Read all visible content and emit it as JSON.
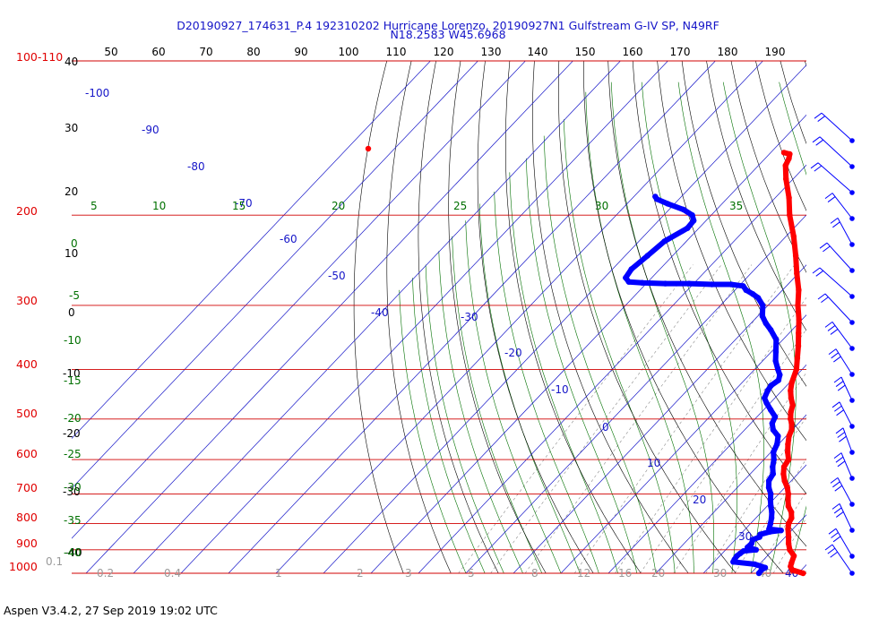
{
  "header": {
    "title_line1": "D20190927_174631_P.4 192310202 Hurricane Lorenzo, 20190927N1 Gulfstream G-IV SP, N49RF",
    "title_line2": "N18.2583 W45.6968"
  },
  "footer": {
    "software": "Aspen V3.4.2, 27 Sep 2019  19:02 UTC"
  },
  "colors": {
    "temperature": "#ff0000",
    "dewpoint": "#0000ff",
    "isobar": "#d00000",
    "isotherm": "#1515c8",
    "dry_adiabat": "#000000",
    "moist_adiabat": "#007000",
    "mixing_ratio": "#8a8a8a"
  },
  "chart_data": {
    "type": "skew-t",
    "pressure_axis": {
      "unit": "hPa",
      "ticks": [
        "100-110",
        "200",
        "300",
        "400",
        "500",
        "600",
        "700",
        "800",
        "900",
        "1000"
      ]
    },
    "top_axis_ticks": [
      "50",
      "60",
      "70",
      "80",
      "90",
      "100",
      "110",
      "120",
      "130",
      "140",
      "150",
      "160",
      "170",
      "180",
      "190"
    ],
    "height_ticks": [
      "40",
      "30",
      "20",
      "10",
      "0",
      "-10",
      "-20",
      "-30",
      "-40"
    ],
    "isotherm_labels": [
      "-100",
      "-90",
      "-80",
      "-70",
      "-60",
      "-50",
      "-40",
      "-30",
      "-20",
      "-10",
      "0",
      "10",
      "20",
      "30",
      "40"
    ],
    "theta_e_labels": [
      "5",
      "10",
      "15",
      "20",
      "25",
      "30",
      "35"
    ],
    "left_green_labels": [
      "0",
      "-5",
      "-10",
      "-15",
      "-20",
      "-25",
      "-30",
      "-35",
      "-40"
    ],
    "mixing_ratio_labels": [
      "0.1",
      "0.2",
      "0.4",
      "1",
      "2",
      "3",
      "5",
      "8",
      "12",
      "16",
      "20",
      "30",
      "40"
    ],
    "temperature_profile": [
      {
        "p": 1000,
        "t": 31.0
      },
      {
        "p": 985,
        "t": 28.0
      },
      {
        "p": 970,
        "t": 27.0
      },
      {
        "p": 955,
        "t": 26.5
      },
      {
        "p": 925,
        "t": 25.6
      },
      {
        "p": 900,
        "t": 23.5
      },
      {
        "p": 875,
        "t": 22.0
      },
      {
        "p": 850,
        "t": 20.7
      },
      {
        "p": 820,
        "t": 19.0
      },
      {
        "p": 800,
        "t": 18.0
      },
      {
        "p": 780,
        "t": 17.5
      },
      {
        "p": 760,
        "t": 16.3
      },
      {
        "p": 740,
        "t": 14.5
      },
      {
        "p": 720,
        "t": 13.2
      },
      {
        "p": 700,
        "t": 12.0
      },
      {
        "p": 680,
        "t": 10.5
      },
      {
        "p": 660,
        "t": 8.6
      },
      {
        "p": 640,
        "t": 7.0
      },
      {
        "p": 620,
        "t": 5.7
      },
      {
        "p": 600,
        "t": 5.2
      },
      {
        "p": 580,
        "t": 3.5
      },
      {
        "p": 560,
        "t": 2.0
      },
      {
        "p": 540,
        "t": 0.6
      },
      {
        "p": 525,
        "t": -0.1
      },
      {
        "p": 510,
        "t": -1.4
      },
      {
        "p": 500,
        "t": -2.5
      },
      {
        "p": 485,
        "t": -3.8
      },
      {
        "p": 470,
        "t": -4.8
      },
      {
        "p": 455,
        "t": -6.6
      },
      {
        "p": 440,
        "t": -8.2
      },
      {
        "p": 425,
        "t": -9.5
      },
      {
        "p": 400,
        "t": -11.2
      },
      {
        "p": 380,
        "t": -13.3
      },
      {
        "p": 360,
        "t": -15.5
      },
      {
        "p": 340,
        "t": -18.0
      },
      {
        "p": 320,
        "t": -20.6
      },
      {
        "p": 300,
        "t": -23.7
      },
      {
        "p": 280,
        "t": -26.6
      },
      {
        "p": 260,
        "t": -30.3
      },
      {
        "p": 240,
        "t": -34.1
      },
      {
        "p": 220,
        "t": -38.4
      },
      {
        "p": 200,
        "t": -43.5
      },
      {
        "p": 185,
        "t": -47.1
      },
      {
        "p": 170,
        "t": -51.5
      },
      {
        "p": 160,
        "t": -54.3
      },
      {
        "p": 155,
        "t": -55.0
      },
      {
        "p": 152,
        "t": -55.7
      },
      {
        "p": 151,
        "t": -57.2
      }
    ],
    "dewpoint_profile": [
      {
        "p": 1000,
        "t": 21.7
      },
      {
        "p": 985,
        "t": 21.6
      },
      {
        "p": 975,
        "t": 21.9
      },
      {
        "p": 960,
        "t": 19.0
      },
      {
        "p": 950,
        "t": 14.0
      },
      {
        "p": 940,
        "t": 13.8
      },
      {
        "p": 925,
        "t": 13.6
      },
      {
        "p": 915,
        "t": 13.8
      },
      {
        "p": 905,
        "t": 14.0
      },
      {
        "p": 900,
        "t": 16.4
      },
      {
        "p": 890,
        "t": 14.1
      },
      {
        "p": 875,
        "t": 14.2
      },
      {
        "p": 860,
        "t": 13.7
      },
      {
        "p": 850,
        "t": 14.6
      },
      {
        "p": 840,
        "t": 14.2
      },
      {
        "p": 830,
        "t": 15.7
      },
      {
        "p": 825,
        "t": 17.8
      },
      {
        "p": 820,
        "t": 15.0
      },
      {
        "p": 800,
        "t": 14.2
      },
      {
        "p": 780,
        "t": 13.3
      },
      {
        "p": 760,
        "t": 12.2
      },
      {
        "p": 740,
        "t": 10.8
      },
      {
        "p": 720,
        "t": 9.5
      },
      {
        "p": 700,
        "t": 8.3
      },
      {
        "p": 680,
        "t": 6.6
      },
      {
        "p": 660,
        "t": 5.3
      },
      {
        "p": 640,
        "t": 4.8
      },
      {
        "p": 620,
        "t": 3.3
      },
      {
        "p": 600,
        "t": 2.1
      },
      {
        "p": 580,
        "t": 0.5
      },
      {
        "p": 560,
        "t": -0.3
      },
      {
        "p": 540,
        "t": -1.7
      },
      {
        "p": 525,
        "t": -4.0
      },
      {
        "p": 510,
        "t": -5.5
      },
      {
        "p": 495,
        "t": -6.2
      },
      {
        "p": 480,
        "t": -8.5
      },
      {
        "p": 465,
        "t": -10.8
      },
      {
        "p": 455,
        "t": -12.2
      },
      {
        "p": 440,
        "t": -13.0
      },
      {
        "p": 430,
        "t": -13.3
      },
      {
        "p": 420,
        "t": -12.8
      },
      {
        "p": 410,
        "t": -13.6
      },
      {
        "p": 400,
        "t": -15.1
      },
      {
        "p": 385,
        "t": -17.3
      },
      {
        "p": 370,
        "t": -19.0
      },
      {
        "p": 350,
        "t": -21.4
      },
      {
        "p": 335,
        "t": -24.5
      },
      {
        "p": 325,
        "t": -26.9
      },
      {
        "p": 315,
        "t": -29.0
      },
      {
        "p": 300,
        "t": -31.1
      },
      {
        "p": 290,
        "t": -33.6
      },
      {
        "p": 285,
        "t": -35.5
      },
      {
        "p": 280,
        "t": -37.7
      },
      {
        "p": 275,
        "t": -39.1
      },
      {
        "p": 273,
        "t": -42.0
      },
      {
        "p": 273,
        "t": -46.0
      },
      {
        "p": 272,
        "t": -51.0
      },
      {
        "p": 272,
        "t": -56.0
      },
      {
        "p": 271,
        "t": -61.0
      },
      {
        "p": 270,
        "t": -64.0
      },
      {
        "p": 265,
        "t": -65.5
      },
      {
        "p": 255,
        "t": -66.0
      },
      {
        "p": 240,
        "t": -65.3
      },
      {
        "p": 225,
        "t": -64.6
      },
      {
        "p": 212,
        "t": -62.4
      },
      {
        "p": 205,
        "t": -62.6
      },
      {
        "p": 200,
        "t": -64.0
      },
      {
        "p": 195,
        "t": -67.0
      },
      {
        "p": 190,
        "t": -71.5
      },
      {
        "p": 186,
        "t": -74.7
      },
      {
        "p": 184,
        "t": -75.5
      }
    ],
    "wind_barbs_pressure": [
      1000,
      960,
      925,
      885,
      850,
      815,
      780,
      750,
      720,
      690,
      655,
      620,
      590,
      560,
      530,
      490,
      450,
      410,
      370,
      330,
      290,
      250,
      210,
      170
    ]
  }
}
